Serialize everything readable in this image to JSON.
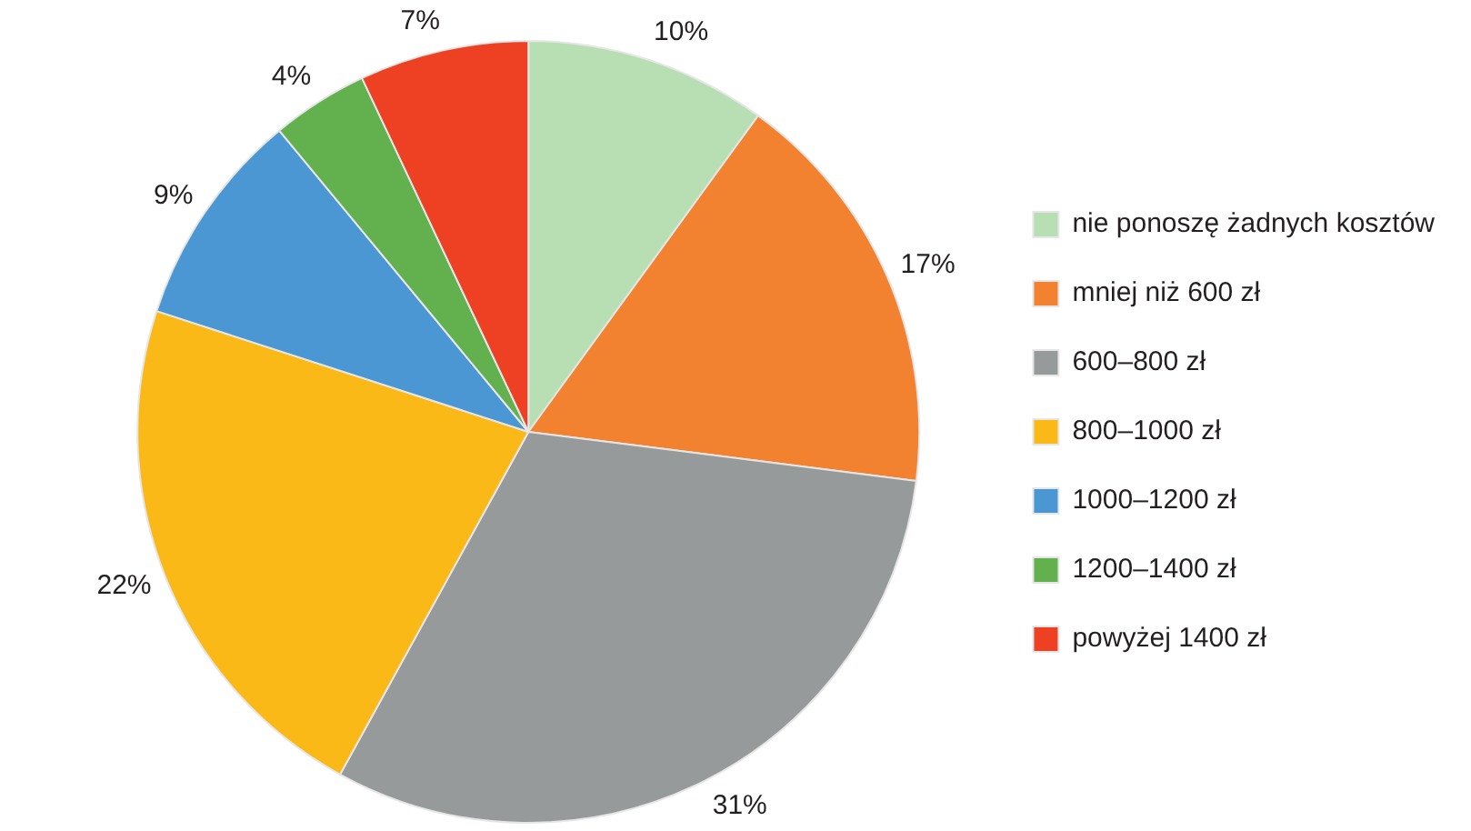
{
  "chart_data": {
    "type": "pie",
    "categories": [
      "nie ponoszę żadnych kosztów",
      "mniej niż 600 zł",
      "600–800 zł",
      "800–1000 zł",
      "1000–1200 zł",
      "1200–1400 zł",
      "powyżej 1400 zł"
    ],
    "values": [
      10,
      17,
      31,
      22,
      9,
      4,
      7
    ],
    "value_labels": [
      "10%",
      "17%",
      "31%",
      "22%",
      "9%",
      "4%",
      "7%"
    ],
    "colors": [
      "#b8dfb4",
      "#f28130",
      "#979a9b",
      "#fbb917",
      "#4a97d4",
      "#63b04f",
      "#ee4124"
    ],
    "legend": "right"
  }
}
